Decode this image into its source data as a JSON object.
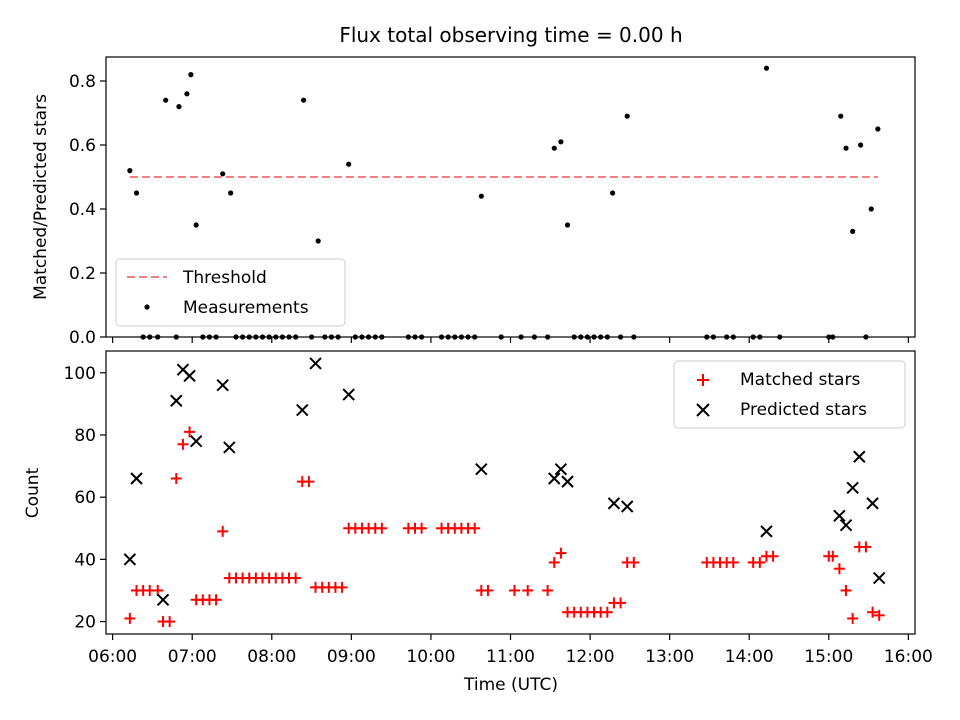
{
  "chart_data": [
    {
      "type": "scatter",
      "title": "Flux total observing time = 0.00 h",
      "ylabel": "Matched/Predicted stars",
      "xlabel": "",
      "ylim": [
        0,
        0.875
      ],
      "yticks": [
        "0.0",
        "0.2",
        "0.4",
        "0.6",
        "0.8"
      ],
      "ytick_values": [
        0,
        0.2,
        0.4,
        0.6,
        0.8
      ],
      "legend": {
        "placement": "lower-left"
      },
      "threshold": {
        "name": "Threshold",
        "value": 0.5,
        "color": "#f08080",
        "x_range": [
          "06:13",
          "15:37"
        ]
      },
      "series": [
        {
          "name": "Measurements",
          "color": "#000000",
          "points": [
            [
              "06:13",
              0.52
            ],
            [
              "06:18",
              0.45
            ],
            [
              "06:40",
              0.74
            ],
            [
              "06:50",
              0.72
            ],
            [
              "06:56",
              0.76
            ],
            [
              "06:59",
              0.82
            ],
            [
              "07:03",
              0.35
            ],
            [
              "07:23",
              0.51
            ],
            [
              "07:29",
              0.45
            ],
            [
              "08:24",
              0.74
            ],
            [
              "08:35",
              0.3
            ],
            [
              "08:58",
              0.54
            ],
            [
              "10:38",
              0.44
            ],
            [
              "11:33",
              0.59
            ],
            [
              "11:38",
              0.61
            ],
            [
              "11:43",
              0.35
            ],
            [
              "12:17",
              0.45
            ],
            [
              "12:28",
              0.69
            ],
            [
              "14:13",
              0.84
            ],
            [
              "15:09",
              0.69
            ],
            [
              "15:13",
              0.59
            ],
            [
              "15:18",
              0.33
            ],
            [
              "15:24",
              0.6
            ],
            [
              "15:32",
              0.4
            ],
            [
              "15:37",
              0.65
            ],
            [
              "06:23",
              0
            ],
            [
              "06:28",
              0
            ],
            [
              "06:34",
              0
            ],
            [
              "06:48",
              0
            ],
            [
              "07:08",
              0
            ],
            [
              "07:13",
              0
            ],
            [
              "07:18",
              0
            ],
            [
              "07:33",
              0
            ],
            [
              "07:38",
              0
            ],
            [
              "07:43",
              0
            ],
            [
              "07:48",
              0
            ],
            [
              "07:53",
              0
            ],
            [
              "07:58",
              0
            ],
            [
              "08:03",
              0
            ],
            [
              "08:08",
              0
            ],
            [
              "08:13",
              0
            ],
            [
              "08:18",
              0
            ],
            [
              "08:30",
              0
            ],
            [
              "08:40",
              0
            ],
            [
              "08:45",
              0
            ],
            [
              "08:50",
              0
            ],
            [
              "09:03",
              0
            ],
            [
              "09:08",
              0
            ],
            [
              "09:13",
              0
            ],
            [
              "09:18",
              0
            ],
            [
              "09:23",
              0
            ],
            [
              "09:43",
              0
            ],
            [
              "09:48",
              0
            ],
            [
              "09:53",
              0
            ],
            [
              "10:08",
              0
            ],
            [
              "10:13",
              0
            ],
            [
              "10:18",
              0
            ],
            [
              "10:23",
              0
            ],
            [
              "10:28",
              0
            ],
            [
              "10:33",
              0
            ],
            [
              "10:53",
              0
            ],
            [
              "11:08",
              0
            ],
            [
              "11:18",
              0
            ],
            [
              "11:28",
              0
            ],
            [
              "11:48",
              0
            ],
            [
              "11:53",
              0
            ],
            [
              "11:58",
              0
            ],
            [
              "12:03",
              0
            ],
            [
              "12:08",
              0
            ],
            [
              "12:13",
              0
            ],
            [
              "12:23",
              0
            ],
            [
              "12:33",
              0
            ],
            [
              "13:28",
              0
            ],
            [
              "13:33",
              0
            ],
            [
              "13:43",
              0
            ],
            [
              "13:48",
              0
            ],
            [
              "14:03",
              0
            ],
            [
              "14:08",
              0
            ],
            [
              "14:23",
              0
            ],
            [
              "15:00",
              0
            ],
            [
              "15:03",
              0
            ],
            [
              "15:28",
              0
            ]
          ]
        }
      ]
    },
    {
      "type": "scatter",
      "xlabel": "Time (UTC)",
      "ylabel": "Count",
      "xlim": [
        "05:55",
        "16:05"
      ],
      "ylim": [
        16,
        107
      ],
      "xticks": [
        "06:00",
        "07:00",
        "08:00",
        "09:00",
        "10:00",
        "11:00",
        "12:00",
        "13:00",
        "14:00",
        "15:00",
        "16:00"
      ],
      "yticks": [
        "20",
        "40",
        "60",
        "80",
        "100"
      ],
      "ytick_values": [
        20,
        40,
        60,
        80,
        100
      ],
      "legend": {
        "placement": "upper-right"
      },
      "series": [
        {
          "name": "Matched stars",
          "marker": "plus",
          "color": "#ff0000",
          "points": [
            [
              "06:13",
              21
            ],
            [
              "06:18",
              30
            ],
            [
              "06:23",
              30
            ],
            [
              "06:28",
              30
            ],
            [
              "06:34",
              30
            ],
            [
              "06:38",
              20
            ],
            [
              "06:43",
              20
            ],
            [
              "06:48",
              66
            ],
            [
              "06:53",
              77
            ],
            [
              "06:58",
              81
            ],
            [
              "07:03",
              27
            ],
            [
              "07:08",
              27
            ],
            [
              "07:13",
              27
            ],
            [
              "07:18",
              27
            ],
            [
              "07:23",
              49
            ],
            [
              "07:28",
              34
            ],
            [
              "07:33",
              34
            ],
            [
              "07:38",
              34
            ],
            [
              "07:43",
              34
            ],
            [
              "07:48",
              34
            ],
            [
              "07:53",
              34
            ],
            [
              "07:58",
              34
            ],
            [
              "08:03",
              34
            ],
            [
              "08:08",
              34
            ],
            [
              "08:13",
              34
            ],
            [
              "08:18",
              34
            ],
            [
              "08:23",
              65
            ],
            [
              "08:28",
              65
            ],
            [
              "08:33",
              31
            ],
            [
              "08:38",
              31
            ],
            [
              "08:43",
              31
            ],
            [
              "08:48",
              31
            ],
            [
              "08:53",
              31
            ],
            [
              "08:58",
              50
            ],
            [
              "09:03",
              50
            ],
            [
              "09:08",
              50
            ],
            [
              "09:13",
              50
            ],
            [
              "09:18",
              50
            ],
            [
              "09:23",
              50
            ],
            [
              "09:43",
              50
            ],
            [
              "09:48",
              50
            ],
            [
              "09:53",
              50
            ],
            [
              "10:08",
              50
            ],
            [
              "10:13",
              50
            ],
            [
              "10:18",
              50
            ],
            [
              "10:23",
              50
            ],
            [
              "10:28",
              50
            ],
            [
              "10:33",
              50
            ],
            [
              "10:38",
              30
            ],
            [
              "10:43",
              30
            ],
            [
              "11:03",
              30
            ],
            [
              "11:13",
              30
            ],
            [
              "11:28",
              30
            ],
            [
              "11:33",
              39
            ],
            [
              "11:38",
              42
            ],
            [
              "11:43",
              23
            ],
            [
              "11:48",
              23
            ],
            [
              "11:53",
              23
            ],
            [
              "11:58",
              23
            ],
            [
              "12:03",
              23
            ],
            [
              "12:08",
              23
            ],
            [
              "12:13",
              23
            ],
            [
              "12:18",
              26
            ],
            [
              "12:23",
              26
            ],
            [
              "12:28",
              39
            ],
            [
              "12:33",
              39
            ],
            [
              "13:28",
              39
            ],
            [
              "13:33",
              39
            ],
            [
              "13:38",
              39
            ],
            [
              "13:43",
              39
            ],
            [
              "13:48",
              39
            ],
            [
              "14:03",
              39
            ],
            [
              "14:08",
              39
            ],
            [
              "14:13",
              41
            ],
            [
              "14:18",
              41
            ],
            [
              "15:00",
              41
            ],
            [
              "15:03",
              41
            ],
            [
              "15:08",
              37
            ],
            [
              "15:13",
              30
            ],
            [
              "15:18",
              21
            ],
            [
              "15:23",
              44
            ],
            [
              "15:28",
              44
            ],
            [
              "15:33",
              23
            ],
            [
              "15:38",
              22
            ]
          ]
        },
        {
          "name": "Predicted stars",
          "marker": "x",
          "color": "#000000",
          "points": [
            [
              "06:13",
              40
            ],
            [
              "06:18",
              66
            ],
            [
              "06:38",
              27
            ],
            [
              "06:48",
              91
            ],
            [
              "06:53",
              101
            ],
            [
              "06:58",
              99
            ],
            [
              "07:03",
              78
            ],
            [
              "07:23",
              96
            ],
            [
              "07:28",
              76
            ],
            [
              "08:23",
              88
            ],
            [
              "08:33",
              103
            ],
            [
              "08:58",
              93
            ],
            [
              "10:38",
              69
            ],
            [
              "11:33",
              66
            ],
            [
              "11:38",
              69
            ],
            [
              "11:43",
              65
            ],
            [
              "12:18",
              58
            ],
            [
              "12:28",
              57
            ],
            [
              "14:13",
              49
            ],
            [
              "15:08",
              54
            ],
            [
              "15:13",
              51
            ],
            [
              "15:18",
              63
            ],
            [
              "15:23",
              73
            ],
            [
              "15:33",
              58
            ],
            [
              "15:38",
              34
            ]
          ]
        }
      ]
    }
  ]
}
